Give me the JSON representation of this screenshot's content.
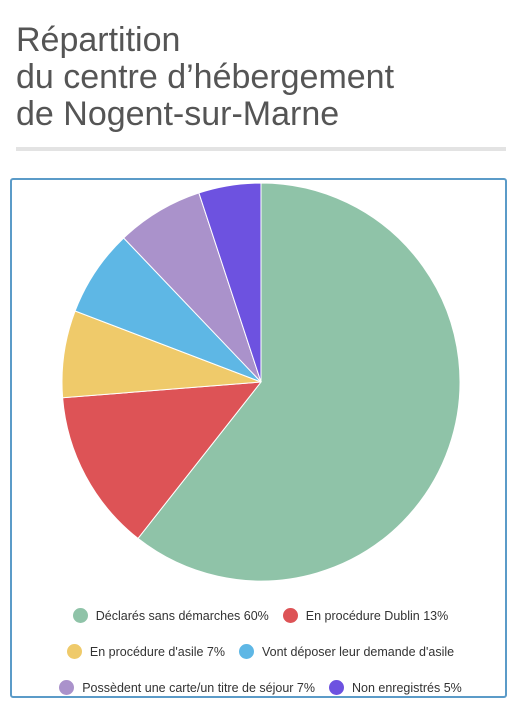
{
  "title": {
    "line1": "Répartition",
    "line2": "du centre d’hébergement",
    "line3": "de Nogent-sur-Marne"
  },
  "chart_data": {
    "type": "pie",
    "title": "Répartition du centre d’hébergement de Nogent-sur-Marne",
    "legend_position": "bottom",
    "slices": [
      {
        "label": "Déclarés sans démarches 60%",
        "value": 60,
        "color": "#8fc3a8"
      },
      {
        "label": "En procédure Dublin 13%",
        "value": 13,
        "color": "#dd5356"
      },
      {
        "label": "En procédure d'asile 7%",
        "value": 7,
        "color": "#efca6a"
      },
      {
        "label": "Vont déposer leur demande d'asile",
        "value": 7,
        "color": "#5eb7e5"
      },
      {
        "label": "Possèdent une carte/un titre de séjour 7%",
        "value": 7,
        "color": "#aa92cb"
      },
      {
        "label": "Non enregistrés 5%",
        "value": 5,
        "color": "#6d52e0"
      }
    ]
  }
}
